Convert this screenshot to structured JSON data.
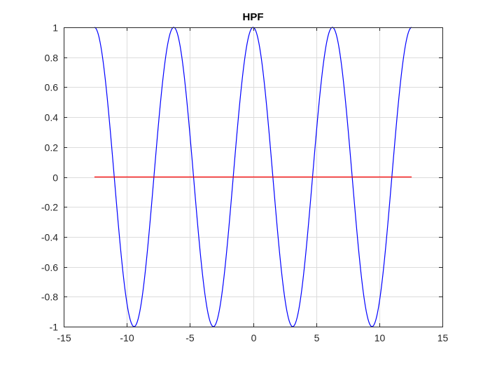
{
  "chart_data": {
    "type": "line",
    "title": "HPF",
    "xlabel": "",
    "ylabel": "",
    "xlim": [
      -15,
      15
    ],
    "ylim": [
      -1,
      1
    ],
    "x_ticks": [
      -15,
      -10,
      -5,
      0,
      5,
      10,
      15
    ],
    "x_tick_labels": [
      "-15",
      "-10",
      "-5",
      "0",
      "5",
      "10",
      "15"
    ],
    "y_ticks": [
      -1,
      -0.8,
      -0.6,
      -0.4,
      -0.2,
      0,
      0.2,
      0.4,
      0.6,
      0.8,
      1
    ],
    "y_tick_labels": [
      "-1",
      "-0.8",
      "-0.6",
      "-0.4",
      "-0.2",
      "0",
      "0.2",
      "0.4",
      "0.6",
      "0.8",
      "1"
    ],
    "grid": true,
    "series": [
      {
        "function": "cos",
        "x_range": [
          -12.566,
          12.566
        ],
        "samples": 400,
        "color": "#0000ff"
      },
      {
        "function": "zero",
        "x_range": [
          -12.566,
          12.566
        ],
        "samples": 2,
        "color": "#ff0000"
      }
    ]
  }
}
